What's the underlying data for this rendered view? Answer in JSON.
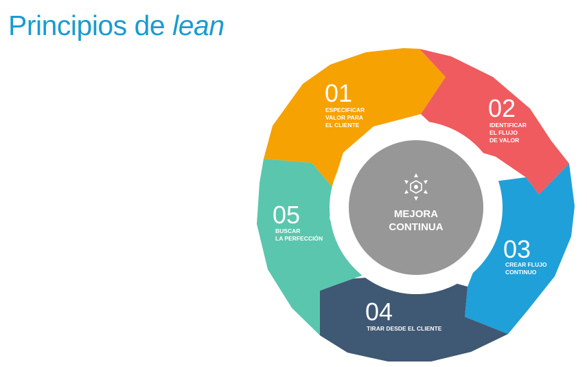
{
  "title": {
    "main": "Principios de",
    "emphasis": "lean"
  },
  "center": {
    "icon": "gear-cycle-icon",
    "line1": "MEJORA",
    "line2": "CONTINUA",
    "color": "#979797"
  },
  "steps": [
    {
      "number": "01",
      "lines": [
        "ESPECIFICAR",
        "VALOR PARA",
        "EL CLIENTE"
      ],
      "color": "#f6a202"
    },
    {
      "number": "02",
      "lines": [
        "IDENTIFICAR",
        "EL FLUJO",
        "DE VALOR"
      ],
      "color": "#ef5b5e"
    },
    {
      "number": "03",
      "lines": [
        "CREAR FLUJO",
        "CONTINUO"
      ],
      "color": "#1fa0d8"
    },
    {
      "number": "04",
      "lines": [
        "TIRAR DESDE EL CLIENTE"
      ],
      "color": "#3f5873"
    },
    {
      "number": "05",
      "lines": [
        "BUSCAR",
        "LA PERFECCIÓN"
      ],
      "color": "#5ac6ad"
    }
  ],
  "colors": {
    "title": "#1a9bd1",
    "background": "#ffffff"
  }
}
